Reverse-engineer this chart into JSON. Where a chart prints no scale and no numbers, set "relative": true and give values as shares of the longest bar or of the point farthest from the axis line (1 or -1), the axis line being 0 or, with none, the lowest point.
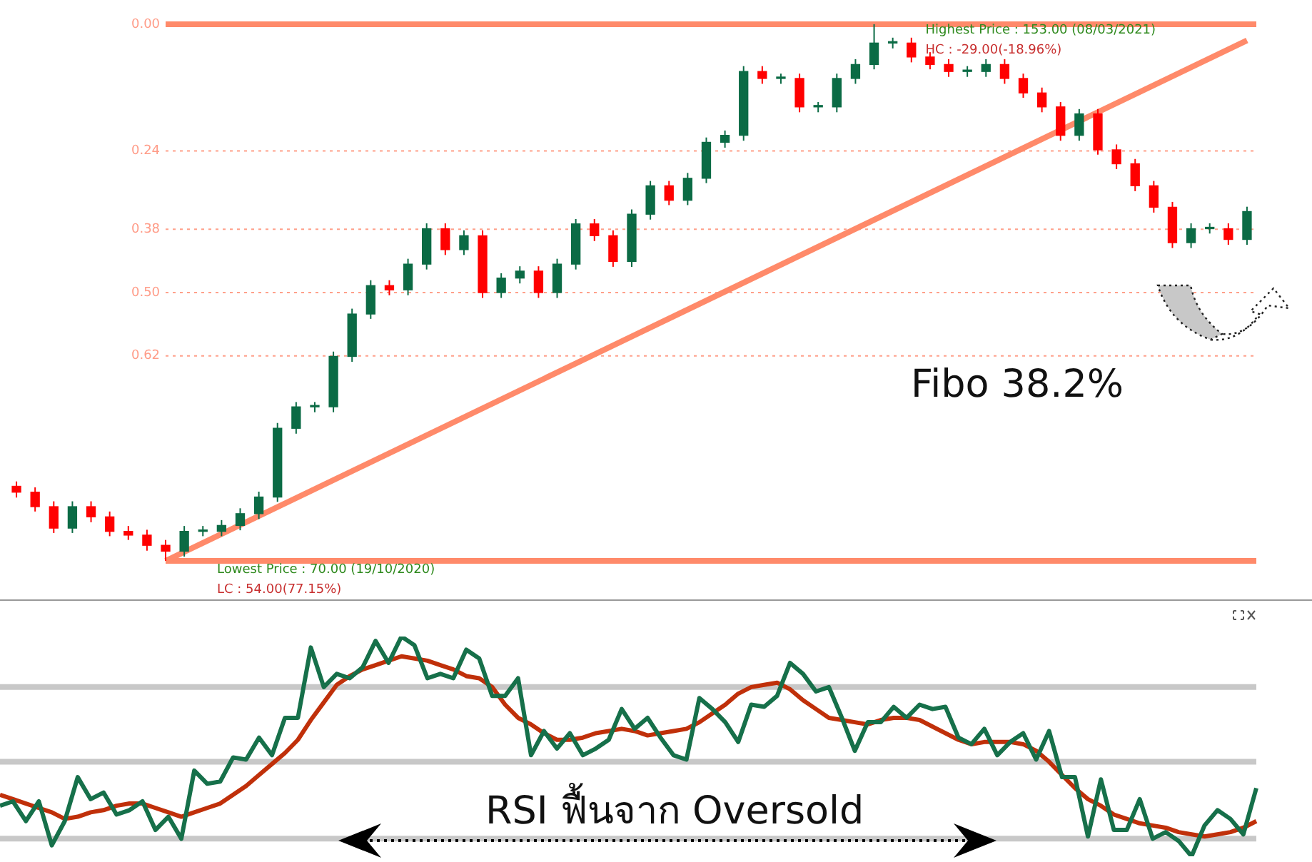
{
  "chart_data": [
    {
      "type": "candlestick",
      "tick_labels": "y",
      "legend": false,
      "grid": "y",
      "categories": [
        null,
        null,
        null,
        null,
        null,
        null,
        null,
        null,
        null,
        null,
        null,
        null,
        null,
        null,
        null,
        null,
        null,
        null,
        null,
        null,
        null,
        null,
        null,
        null,
        null,
        null,
        null,
        null,
        null,
        null,
        null,
        null,
        null,
        null,
        null,
        null,
        null,
        null,
        null,
        null,
        null,
        null,
        null,
        null,
        null,
        null,
        null,
        null,
        null,
        null,
        null,
        null,
        null,
        null,
        null,
        null,
        null,
        null,
        null,
        null,
        null,
        null,
        null,
        null,
        null,
        null,
        null
      ],
      "ylim": [
        1,
        0
      ],
      "yticks": [
        {
          "value": 0,
          "label": "0.00"
        },
        {
          "value": 0.236,
          "label": "0.24"
        },
        {
          "value": 0.382,
          "label": "0.38"
        },
        {
          "value": 0.5,
          "label": "0.50"
        },
        {
          "value": 0.618,
          "label": "0.62"
        }
      ],
      "ohlc": [
        [
          0.861,
          0.882,
          0.852,
          0.872
        ],
        [
          0.872,
          0.908,
          0.863,
          0.899
        ],
        [
          0.899,
          0.948,
          0.889,
          0.939
        ],
        [
          0.939,
          0.948,
          0.889,
          0.899
        ],
        [
          0.899,
          0.928,
          0.889,
          0.918
        ],
        [
          0.918,
          0.954,
          0.908,
          0.945
        ],
        [
          0.945,
          0.961,
          0.935,
          0.952
        ],
        [
          0.952,
          0.981,
          0.942,
          0.971
        ],
        [
          0.971,
          1,
          0.961,
          0.982
        ],
        [
          0.982,
          0.992,
          0.935,
          0.945
        ],
        [
          0.945,
          0.954,
          0.935,
          0.945
        ],
        [
          0.945,
          0.954,
          0.924,
          0.934
        ],
        [
          0.934,
          0.943,
          0.902,
          0.912
        ],
        [
          0.912,
          0.922,
          0.871,
          0.881
        ],
        [
          0.881,
          0.89,
          0.743,
          0.753
        ],
        [
          0.753,
          0.763,
          0.704,
          0.713
        ],
        [
          0.713,
          0.723,
          0.704,
          0.713
        ],
        [
          0.713,
          0.723,
          0.61,
          0.619
        ],
        [
          0.619,
          0.629,
          0.53,
          0.54
        ],
        [
          0.54,
          0.549,
          0.477,
          0.487
        ],
        [
          0.487,
          0.505,
          0.477,
          0.495
        ],
        [
          0.495,
          0.505,
          0.437,
          0.447
        ],
        [
          0.447,
          0.457,
          0.371,
          0.381
        ],
        [
          0.381,
          0.43,
          0.371,
          0.42
        ],
        [
          0.42,
          0.43,
          0.384,
          0.394
        ],
        [
          0.394,
          0.51,
          0.384,
          0.5
        ],
        [
          0.5,
          0.51,
          0.464,
          0.473
        ],
        [
          0.473,
          0.483,
          0.451,
          0.46
        ],
        [
          0.46,
          0.51,
          0.451,
          0.5
        ],
        [
          0.5,
          0.51,
          0.437,
          0.447
        ],
        [
          0.447,
          0.457,
          0.363,
          0.372
        ],
        [
          0.372,
          0.404,
          0.363,
          0.394
        ],
        [
          0.394,
          0.452,
          0.384,
          0.442
        ],
        [
          0.442,
          0.452,
          0.345,
          0.354
        ],
        [
          0.354,
          0.364,
          0.292,
          0.301
        ],
        [
          0.301,
          0.337,
          0.292,
          0.328
        ],
        [
          0.328,
          0.337,
          0.277,
          0.287
        ],
        [
          0.287,
          0.296,
          0.211,
          0.22
        ],
        [
          0.22,
          0.23,
          0.198,
          0.207
        ],
        [
          0.207,
          0.217,
          0.078,
          0.088
        ],
        [
          0.088,
          0.111,
          0.078,
          0.101
        ],
        [
          0.101,
          0.111,
          0.092,
          0.101
        ],
        [
          0.101,
          0.164,
          0.092,
          0.154
        ],
        [
          0.154,
          0.164,
          0.145,
          0.154
        ],
        [
          0.154,
          0.164,
          0.092,
          0.101
        ],
        [
          0.101,
          0.111,
          0.065,
          0.075
        ],
        [
          0.075,
          0.084,
          0,
          0.035
        ],
        [
          0.035,
          0.045,
          0.025,
          0.035
        ],
        [
          0.035,
          0.071,
          0.025,
          0.061
        ],
        [
          0.061,
          0.084,
          0.052,
          0.075
        ],
        [
          0.075,
          0.098,
          0.065,
          0.088
        ],
        [
          0.088,
          0.098,
          0.078,
          0.088
        ],
        [
          0.088,
          0.098,
          0.065,
          0.075
        ],
        [
          0.075,
          0.111,
          0.065,
          0.101
        ],
        [
          0.101,
          0.137,
          0.092,
          0.128
        ],
        [
          0.128,
          0.164,
          0.118,
          0.154
        ],
        [
          0.154,
          0.217,
          0.145,
          0.207
        ],
        [
          0.207,
          0.217,
          0.158,
          0.167
        ],
        [
          0.167,
          0.243,
          0.158,
          0.234
        ],
        [
          0.234,
          0.27,
          0.224,
          0.26
        ],
        [
          0.26,
          0.311,
          0.251,
          0.301
        ],
        [
          0.301,
          0.351,
          0.292,
          0.341
        ],
        [
          0.341,
          0.417,
          0.331,
          0.407
        ],
        [
          0.407,
          0.417,
          0.371,
          0.381
        ],
        [
          0.381,
          0.39,
          0.371,
          0.381
        ],
        [
          0.381,
          0.411,
          0.371,
          0.401
        ],
        [
          0.401,
          0.411,
          0.34,
          0.349
        ]
      ],
      "colors": [
        "#ff0000",
        "#ff0000",
        "#ff0000",
        "#0b6b45",
        "#ff0000",
        "#ff0000",
        "#ff0000",
        "#ff0000",
        "#ff0000",
        "#0b6b45",
        "#0b6b45",
        "#0b6b45",
        "#0b6b45",
        "#0b6b45",
        "#0b6b45",
        "#0b6b45",
        "#0b6b45",
        "#0b6b45",
        "#0b6b45",
        "#0b6b45",
        "#ff0000",
        "#0b6b45",
        "#0b6b45",
        "#ff0000",
        "#0b6b45",
        "#ff0000",
        "#0b6b45",
        "#0b6b45",
        "#ff0000",
        "#0b6b45",
        "#0b6b45",
        "#ff0000",
        "#ff0000",
        "#0b6b45",
        "#0b6b45",
        "#ff0000",
        "#0b6b45",
        "#0b6b45",
        "#0b6b45",
        "#0b6b45",
        "#ff0000",
        "#0b6b45",
        "#ff0000",
        "#0b6b45",
        "#0b6b45",
        "#0b6b45",
        "#0b6b45",
        "#0b6b45",
        "#ff0000",
        "#ff0000",
        "#ff0000",
        "#0b6b45",
        "#0b6b45",
        "#ff0000",
        "#ff0000",
        "#ff0000",
        "#ff0000",
        "#0b6b45",
        "#ff0000",
        "#ff0000",
        "#ff0000",
        "#ff0000",
        "#ff0000",
        "#0b6b45",
        "#0b6b45",
        "#ff0000",
        "#0b6b45"
      ],
      "series": [
        {
          "type": "line",
          "color": "#ff8a6a",
          "values": [
            null,
            null,
            null,
            null,
            null,
            null,
            null,
            null,
            1,
            null,
            null,
            null,
            null,
            null,
            null,
            null,
            null,
            null,
            null,
            null,
            null,
            null,
            null,
            null,
            null,
            null,
            null,
            null,
            null,
            null,
            null,
            null,
            null,
            null,
            null,
            null,
            null,
            null,
            null,
            null,
            null,
            null,
            null,
            null,
            null,
            null,
            null,
            null,
            null,
            null,
            null,
            null,
            null,
            null,
            null,
            null,
            null,
            null,
            null,
            null,
            null,
            null,
            null,
            null,
            null,
            null,
            0.03
          ]
        }
      ],
      "ref_lines": [
        {
          "axis": "y",
          "value": 0,
          "color": "#ff8a6a",
          "line_style": "solid"
        },
        {
          "axis": "y",
          "value": 1,
          "color": "#ff8a6a",
          "line_style": "solid"
        }
      ],
      "annotations": [
        {
          "text": "Highest Price : 153.00 (08/03/2021)",
          "y": 0
        },
        {
          "text": "HC : -29.00(-18.96%)",
          "y": 0
        },
        {
          "text": "Lowest Price : 70.00 (19/10/2020)",
          "y": 1
        },
        {
          "text": "LC : 54.00(77.15%)",
          "y": 1
        },
        "Fibo 38.2%"
      ]
    },
    {
      "type": "line",
      "relative": true,
      "tick_labels": false,
      "legend": false,
      "categories": [
        null,
        null,
        null,
        null,
        null,
        null,
        null,
        null,
        null,
        null,
        null,
        null,
        null,
        null,
        null,
        null,
        null,
        null,
        null,
        null,
        null,
        null,
        null,
        null,
        null,
        null,
        null,
        null,
        null,
        null,
        null,
        null,
        null,
        null,
        null,
        null,
        null,
        null,
        null,
        null,
        null,
        null,
        null,
        null,
        null,
        null,
        null,
        null,
        null,
        null,
        null,
        null,
        null,
        null,
        null,
        null,
        null,
        null,
        null,
        null,
        null,
        null,
        null,
        null,
        null,
        null,
        null,
        null,
        null,
        null,
        null,
        null,
        null,
        null,
        null,
        null,
        null,
        null,
        null,
        null,
        null,
        null,
        null,
        null,
        null,
        null,
        null,
        null,
        null,
        null,
        null,
        null,
        null,
        null,
        null,
        null,
        null,
        null
      ],
      "series": [
        {
          "color": "#16704a",
          "values": [
            0.23,
            0.25,
            0.16,
            0.25,
            0.05,
            0.16,
            0.36,
            0.26,
            0.29,
            0.19,
            0.21,
            0.25,
            0.12,
            0.18,
            0.08,
            0.39,
            0.33,
            0.34,
            0.45,
            0.44,
            0.54,
            0.46,
            0.63,
            0.63,
            0.95,
            0.77,
            0.83,
            0.81,
            0.86,
            0.98,
            0.88,
            1,
            0.96,
            0.81,
            0.83,
            0.81,
            0.94,
            0.9,
            0.73,
            0.73,
            0.81,
            0.46,
            0.57,
            0.49,
            0.56,
            0.46,
            0.49,
            0.53,
            0.67,
            0.58,
            0.63,
            0.54,
            0.46,
            0.44,
            0.72,
            0.67,
            0.61,
            0.52,
            0.69,
            0.68,
            0.73,
            0.88,
            0.83,
            0.75,
            0.77,
            0.63,
            0.48,
            0.61,
            0.61,
            0.68,
            0.63,
            0.69,
            0.67,
            0.68,
            0.54,
            0.51,
            0.58,
            0.46,
            0.52,
            0.56,
            0.44,
            0.57,
            0.36,
            0.36,
            0.09,
            0.35,
            0.12,
            0.12,
            0.26,
            0.08,
            0.11,
            0.07,
            0,
            0.14,
            0.21,
            0.17,
            0.1,
            0.31
          ]
        },
        {
          "color": "#c0300a",
          "values": [
            0.28,
            0.26,
            0.24,
            0.22,
            0.2,
            0.17,
            0.18,
            0.2,
            0.21,
            0.23,
            0.24,
            0.24,
            0.22,
            0.2,
            0.18,
            0.2,
            0.22,
            0.24,
            0.28,
            0.32,
            0.37,
            0.42,
            0.47,
            0.53,
            0.62,
            0.7,
            0.78,
            0.82,
            0.85,
            0.87,
            0.89,
            0.91,
            0.9,
            0.89,
            0.87,
            0.85,
            0.82,
            0.81,
            0.77,
            0.69,
            0.63,
            0.6,
            0.56,
            0.53,
            0.53,
            0.54,
            0.56,
            0.57,
            0.58,
            0.57,
            0.55,
            0.56,
            0.57,
            0.58,
            0.61,
            0.65,
            0.69,
            0.74,
            0.77,
            0.78,
            0.79,
            0.76,
            0.71,
            0.67,
            0.63,
            0.62,
            0.61,
            0.6,
            0.62,
            0.63,
            0.63,
            0.62,
            0.59,
            0.56,
            0.53,
            0.51,
            0.52,
            0.52,
            0.52,
            0.51,
            0.48,
            0.43,
            0.37,
            0.31,
            0.26,
            0.23,
            0.19,
            0.17,
            0.15,
            0.14,
            0.13,
            0.11,
            0.1,
            0.09,
            0.1,
            0.11,
            0.13,
            0.16
          ]
        }
      ],
      "ref_lines": [
        {
          "axis": "y",
          "value": 0.77,
          "color": "#c8c8c8",
          "line_style": "solid"
        },
        {
          "axis": "y",
          "value": 0.43,
          "color": "#c8c8c8",
          "line_style": "solid"
        },
        {
          "axis": "y",
          "value": 0.08,
          "color": "#c8c8c8",
          "line_style": "solid"
        }
      ],
      "annotations": [
        "RSI ฟื้นจาก Oversold"
      ]
    }
  ]
}
